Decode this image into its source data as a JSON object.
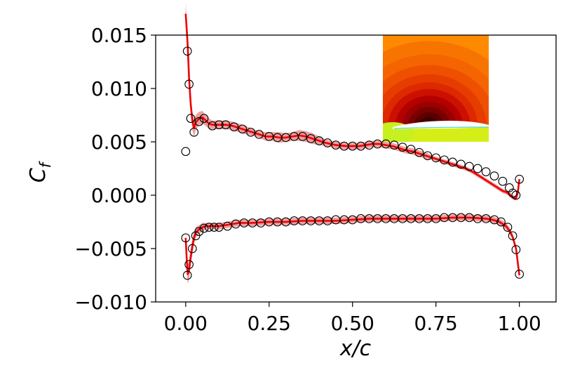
{
  "chart_data": {
    "type": "line",
    "title": "",
    "xlabel": "x/c",
    "ylabel_main": "C",
    "ylabel_sub": "f",
    "xlim": [
      -0.09,
      1.11
    ],
    "ylim": [
      -0.01,
      0.015
    ],
    "x_ticks": [
      0.0,
      0.25,
      0.5,
      0.75,
      1.0
    ],
    "x_tick_labels": [
      "0.00",
      "0.25",
      "0.50",
      "0.75",
      "1.00"
    ],
    "y_ticks": [
      -0.01,
      -0.005,
      0.0,
      0.005,
      0.01,
      0.015
    ],
    "y_tick_labels": [
      "−0.010",
      "−0.005",
      "0.000",
      "0.005",
      "0.010",
      "0.015"
    ],
    "grid": false,
    "legend": "none",
    "colors": {
      "line": "#ee0000",
      "band": "#e05050",
      "marker": "#000000"
    },
    "series": [
      {
        "curve": "upper",
        "line_x": [
          0.0,
          0.003,
          0.006,
          0.01,
          0.015,
          0.02,
          0.025,
          0.03,
          0.04,
          0.05,
          0.06,
          0.07,
          0.08,
          0.1,
          0.12,
          0.14,
          0.16,
          0.18,
          0.2,
          0.22,
          0.24,
          0.26,
          0.28,
          0.3,
          0.32,
          0.34,
          0.36,
          0.38,
          0.4,
          0.42,
          0.45,
          0.48,
          0.5,
          0.52,
          0.54,
          0.56,
          0.58,
          0.6,
          0.62,
          0.64,
          0.66,
          0.68,
          0.7,
          0.72,
          0.74,
          0.76,
          0.78,
          0.8,
          0.82,
          0.84,
          0.86,
          0.88,
          0.9,
          0.92,
          0.94,
          0.95,
          0.96,
          0.97,
          0.98,
          0.99,
          0.995,
          1.0
        ],
        "line_y": [
          0.017,
          0.0155,
          0.014,
          0.011,
          0.0085,
          0.007,
          0.0063,
          0.0068,
          0.0072,
          0.0073,
          0.007,
          0.0067,
          0.0066,
          0.0066,
          0.0066,
          0.0065,
          0.0063,
          0.0061,
          0.0059,
          0.0057,
          0.0055,
          0.0055,
          0.0054,
          0.0054,
          0.0055,
          0.0056,
          0.0055,
          0.0053,
          0.0051,
          0.0049,
          0.0047,
          0.0046,
          0.0046,
          0.0046,
          0.0047,
          0.0048,
          0.0048,
          0.0047,
          0.0046,
          0.0044,
          0.0042,
          0.0041,
          0.0039,
          0.0037,
          0.0035,
          0.0033,
          0.0031,
          0.0029,
          0.0027,
          0.0025,
          0.0022,
          0.0018,
          0.0014,
          0.001,
          0.0006,
          0.0004,
          0.0003,
          0.0001,
          -0.0002,
          -0.0003,
          0.0002,
          0.0015
        ],
        "band_half_width": [
          0.001,
          0.001,
          0.001,
          0.001,
          0.0009,
          0.0009,
          0.0008,
          0.0007,
          0.0006,
          0.0006,
          0.0005,
          0.0005,
          0.0004,
          0.0004,
          0.0004,
          0.0004,
          0.0004,
          0.0004,
          0.0003,
          0.0003,
          0.0004,
          0.0004,
          0.0005,
          0.0004,
          0.0004,
          0.0005,
          0.0005,
          0.0005,
          0.0004,
          0.0003,
          0.0003,
          0.0003,
          0.0003,
          0.0003,
          0.0003,
          0.0003,
          0.0003,
          0.0003,
          0.0003,
          0.0003,
          0.0003,
          0.0003,
          0.0003,
          0.0003,
          0.0002,
          0.0002,
          0.0002,
          0.0002,
          0.0002,
          0.0002,
          0.0002,
          0.0002,
          0.0002,
          0.0002,
          0.0002,
          0.0002,
          0.0002,
          0.0002,
          0.0002,
          0.0002,
          0.0002,
          0.0002
        ],
        "marker_x": [
          0.0,
          0.005,
          0.01,
          0.015,
          0.025,
          0.04,
          0.055,
          0.08,
          0.1,
          0.12,
          0.145,
          0.17,
          0.195,
          0.22,
          0.25,
          0.275,
          0.3,
          0.325,
          0.35,
          0.375,
          0.4,
          0.425,
          0.45,
          0.475,
          0.5,
          0.525,
          0.55,
          0.575,
          0.6,
          0.625,
          0.65,
          0.675,
          0.7,
          0.725,
          0.75,
          0.775,
          0.8,
          0.825,
          0.85,
          0.875,
          0.9,
          0.925,
          0.95,
          0.97,
          0.98,
          0.99,
          1.0
        ],
        "marker_y": [
          0.0041,
          0.0135,
          0.0104,
          0.0072,
          0.0059,
          0.0069,
          0.0072,
          0.0065,
          0.0066,
          0.0066,
          0.0064,
          0.0062,
          0.0059,
          0.0057,
          0.0055,
          0.0054,
          0.0054,
          0.0055,
          0.0055,
          0.0053,
          0.0051,
          0.0049,
          0.0047,
          0.0046,
          0.0046,
          0.0046,
          0.0047,
          0.0048,
          0.0048,
          0.0047,
          0.0045,
          0.0043,
          0.004,
          0.0037,
          0.0035,
          0.0033,
          0.0031,
          0.0029,
          0.0027,
          0.0025,
          0.0022,
          0.0018,
          0.0013,
          0.0007,
          0.0002,
          0.0,
          0.0015
        ]
      },
      {
        "curve": "lower",
        "line_x": [
          0.0,
          0.003,
          0.006,
          0.01,
          0.015,
          0.02,
          0.025,
          0.03,
          0.04,
          0.05,
          0.06,
          0.07,
          0.08,
          0.1,
          0.12,
          0.14,
          0.16,
          0.18,
          0.2,
          0.25,
          0.3,
          0.35,
          0.4,
          0.45,
          0.5,
          0.55,
          0.6,
          0.65,
          0.7,
          0.75,
          0.8,
          0.85,
          0.9,
          0.92,
          0.94,
          0.96,
          0.97,
          0.98,
          0.99,
          1.0
        ],
        "line_y": [
          -0.004,
          -0.006,
          -0.0074,
          -0.007,
          -0.0058,
          -0.0048,
          -0.004,
          -0.0035,
          -0.0032,
          -0.003,
          -0.0029,
          -0.0029,
          -0.0029,
          -0.0029,
          -0.0028,
          -0.0027,
          -0.0026,
          -0.0026,
          -0.0026,
          -0.0025,
          -0.0025,
          -0.0024,
          -0.0024,
          -0.0024,
          -0.0023,
          -0.0022,
          -0.0022,
          -0.0022,
          -0.0022,
          -0.0022,
          -0.0021,
          -0.0021,
          -0.0022,
          -0.0023,
          -0.0025,
          -0.0029,
          -0.0033,
          -0.0039,
          -0.005,
          -0.0075
        ],
        "band_half_width": [
          0.0008,
          0.0008,
          0.0009,
          0.0009,
          0.0008,
          0.0007,
          0.0006,
          0.0005,
          0.0004,
          0.0004,
          0.0003,
          0.0003,
          0.0003,
          0.0003,
          0.0003,
          0.0003,
          0.0003,
          0.0003,
          0.0003,
          0.0003,
          0.0003,
          0.0003,
          0.0003,
          0.0003,
          0.0003,
          0.0003,
          0.0003,
          0.0003,
          0.0003,
          0.0003,
          0.0003,
          0.0003,
          0.0003,
          0.0003,
          0.0003,
          0.0003,
          0.0003,
          0.0003,
          0.0003,
          0.0003
        ],
        "marker_x": [
          0.0,
          0.005,
          0.01,
          0.02,
          0.03,
          0.04,
          0.055,
          0.07,
          0.085,
          0.1,
          0.125,
          0.15,
          0.175,
          0.2,
          0.225,
          0.25,
          0.275,
          0.3,
          0.325,
          0.35,
          0.375,
          0.4,
          0.425,
          0.45,
          0.475,
          0.5,
          0.525,
          0.55,
          0.575,
          0.6,
          0.625,
          0.65,
          0.675,
          0.7,
          0.725,
          0.75,
          0.775,
          0.8,
          0.825,
          0.85,
          0.875,
          0.9,
          0.925,
          0.945,
          0.965,
          0.98,
          0.99,
          1.0
        ],
        "marker_y": [
          -0.004,
          -0.0075,
          -0.0065,
          -0.005,
          -0.0038,
          -0.0034,
          -0.0031,
          -0.003,
          -0.003,
          -0.003,
          -0.0029,
          -0.0027,
          -0.0026,
          -0.0026,
          -0.0026,
          -0.0025,
          -0.0025,
          -0.0025,
          -0.0024,
          -0.0024,
          -0.0024,
          -0.0024,
          -0.0024,
          -0.0023,
          -0.0023,
          -0.0023,
          -0.0022,
          -0.0022,
          -0.0022,
          -0.0022,
          -0.0022,
          -0.0022,
          -0.0022,
          -0.0022,
          -0.0022,
          -0.0022,
          -0.0021,
          -0.0021,
          -0.0021,
          -0.0021,
          -0.0022,
          -0.0022,
          -0.0023,
          -0.0025,
          -0.003,
          -0.0038,
          -0.0051,
          -0.0074
        ]
      }
    ],
    "inset": {
      "type": "heatmap",
      "description_colormap": "hot",
      "colors": [
        "#400000",
        "#5a0000",
        "#7a0000",
        "#990000",
        "#b50000",
        "#cc1000",
        "#dd2800",
        "#e63c00",
        "#ee5000",
        "#f46400",
        "#f87400",
        "#ff8a00"
      ],
      "lower_colors": [
        "#c6f020",
        "#d6ee18",
        "#e2ee10",
        "#ecf010"
      ]
    }
  }
}
